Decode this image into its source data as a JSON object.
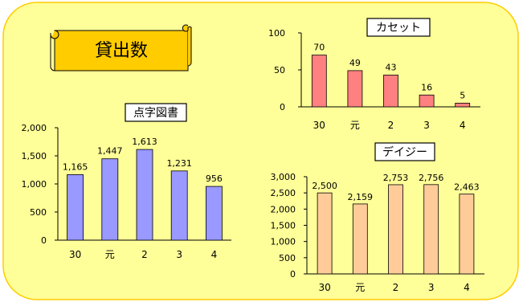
{
  "title": "貸出数",
  "colors": {
    "panel_bg": "#FFFF99",
    "panel_border": "#FFCC00",
    "scroll_fill": "#FFCC00",
    "braille": "#9999FF",
    "cassette": "#FF8080",
    "daisy": "#FFCC99"
  },
  "chart_data": [
    {
      "type": "bar",
      "title": "点字図書",
      "categories": [
        "30",
        "元",
        "2",
        "3",
        "4"
      ],
      "values": [
        1165,
        1447,
        1613,
        1231,
        956
      ],
      "value_labels": [
        "1,165",
        "1,447",
        "1,613",
        "1,231",
        "956"
      ],
      "ylim": [
        0,
        2000
      ],
      "yticks": [
        0,
        500,
        1000,
        1500,
        2000
      ],
      "ytick_labels": [
        "0",
        "500",
        "1,000",
        "1,500",
        "2,000"
      ],
      "xlabel": "",
      "ylabel": "",
      "grid": false
    },
    {
      "type": "bar",
      "title": "カセット",
      "categories": [
        "30",
        "元",
        "2",
        "3",
        "4"
      ],
      "values": [
        70,
        49,
        43,
        16,
        5
      ],
      "value_labels": [
        "70",
        "49",
        "43",
        "16",
        "5"
      ],
      "ylim": [
        0,
        100
      ],
      "yticks": [
        0,
        50,
        100
      ],
      "ytick_labels": [
        "0",
        "50",
        "100"
      ],
      "xlabel": "",
      "ylabel": "",
      "grid": false
    },
    {
      "type": "bar",
      "title": "デイジー",
      "categories": [
        "30",
        "元",
        "2",
        "3",
        "4"
      ],
      "values": [
        2500,
        2159,
        2753,
        2756,
        2463
      ],
      "value_labels": [
        "2,500",
        "2,159",
        "2,753",
        "2,756",
        "2,463"
      ],
      "ylim": [
        0,
        3000
      ],
      "yticks": [
        0,
        500,
        1000,
        1500,
        2000,
        2500,
        3000
      ],
      "ytick_labels": [
        "0",
        "500",
        "1,000",
        "1,500",
        "2,000",
        "2,500",
        "3,000"
      ],
      "xlabel": "",
      "ylabel": "",
      "grid": false
    }
  ]
}
